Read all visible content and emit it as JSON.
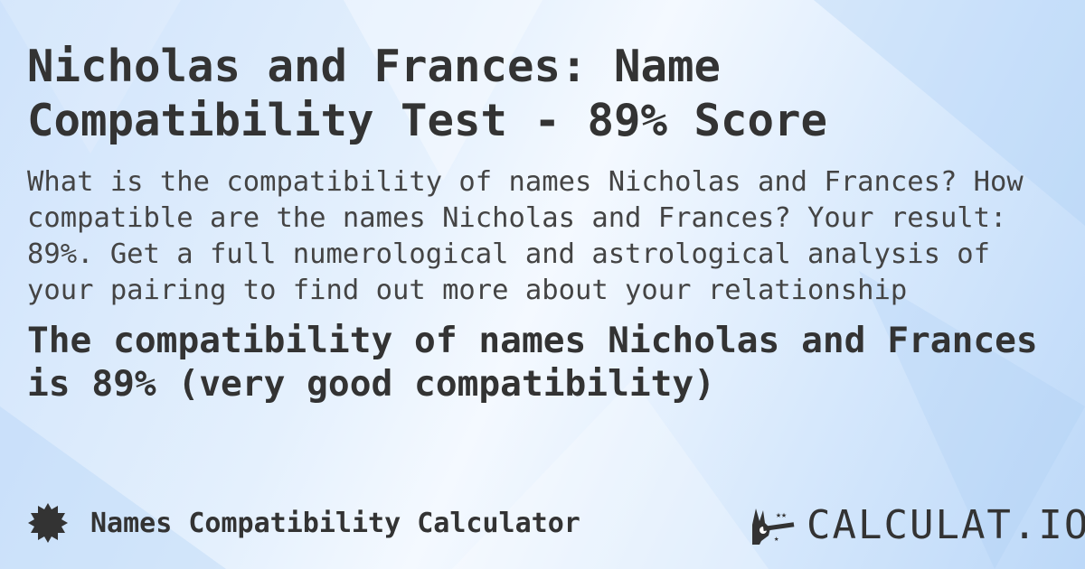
{
  "title": "Nicholas and Frances: Name Compatibility Test - 89% Score",
  "description": "What is the compatibility of names Nicholas and Frances? How compatible are the names Nicholas and Frances? Your result: 89%. Get a full numerological and astrological analysis of your pairing to find out more about your relationship",
  "result": "The compatibility of names Nicholas and Frances is 89% (very good compatibility)",
  "footer": {
    "icon": "badge-icon",
    "label": "Names Compatibility Calculator"
  },
  "logo": {
    "text": "CALCULAT.IO",
    "icon": "magic-hand-icon"
  },
  "colors": {
    "text": "#333333",
    "background": "#d6e8fc"
  }
}
